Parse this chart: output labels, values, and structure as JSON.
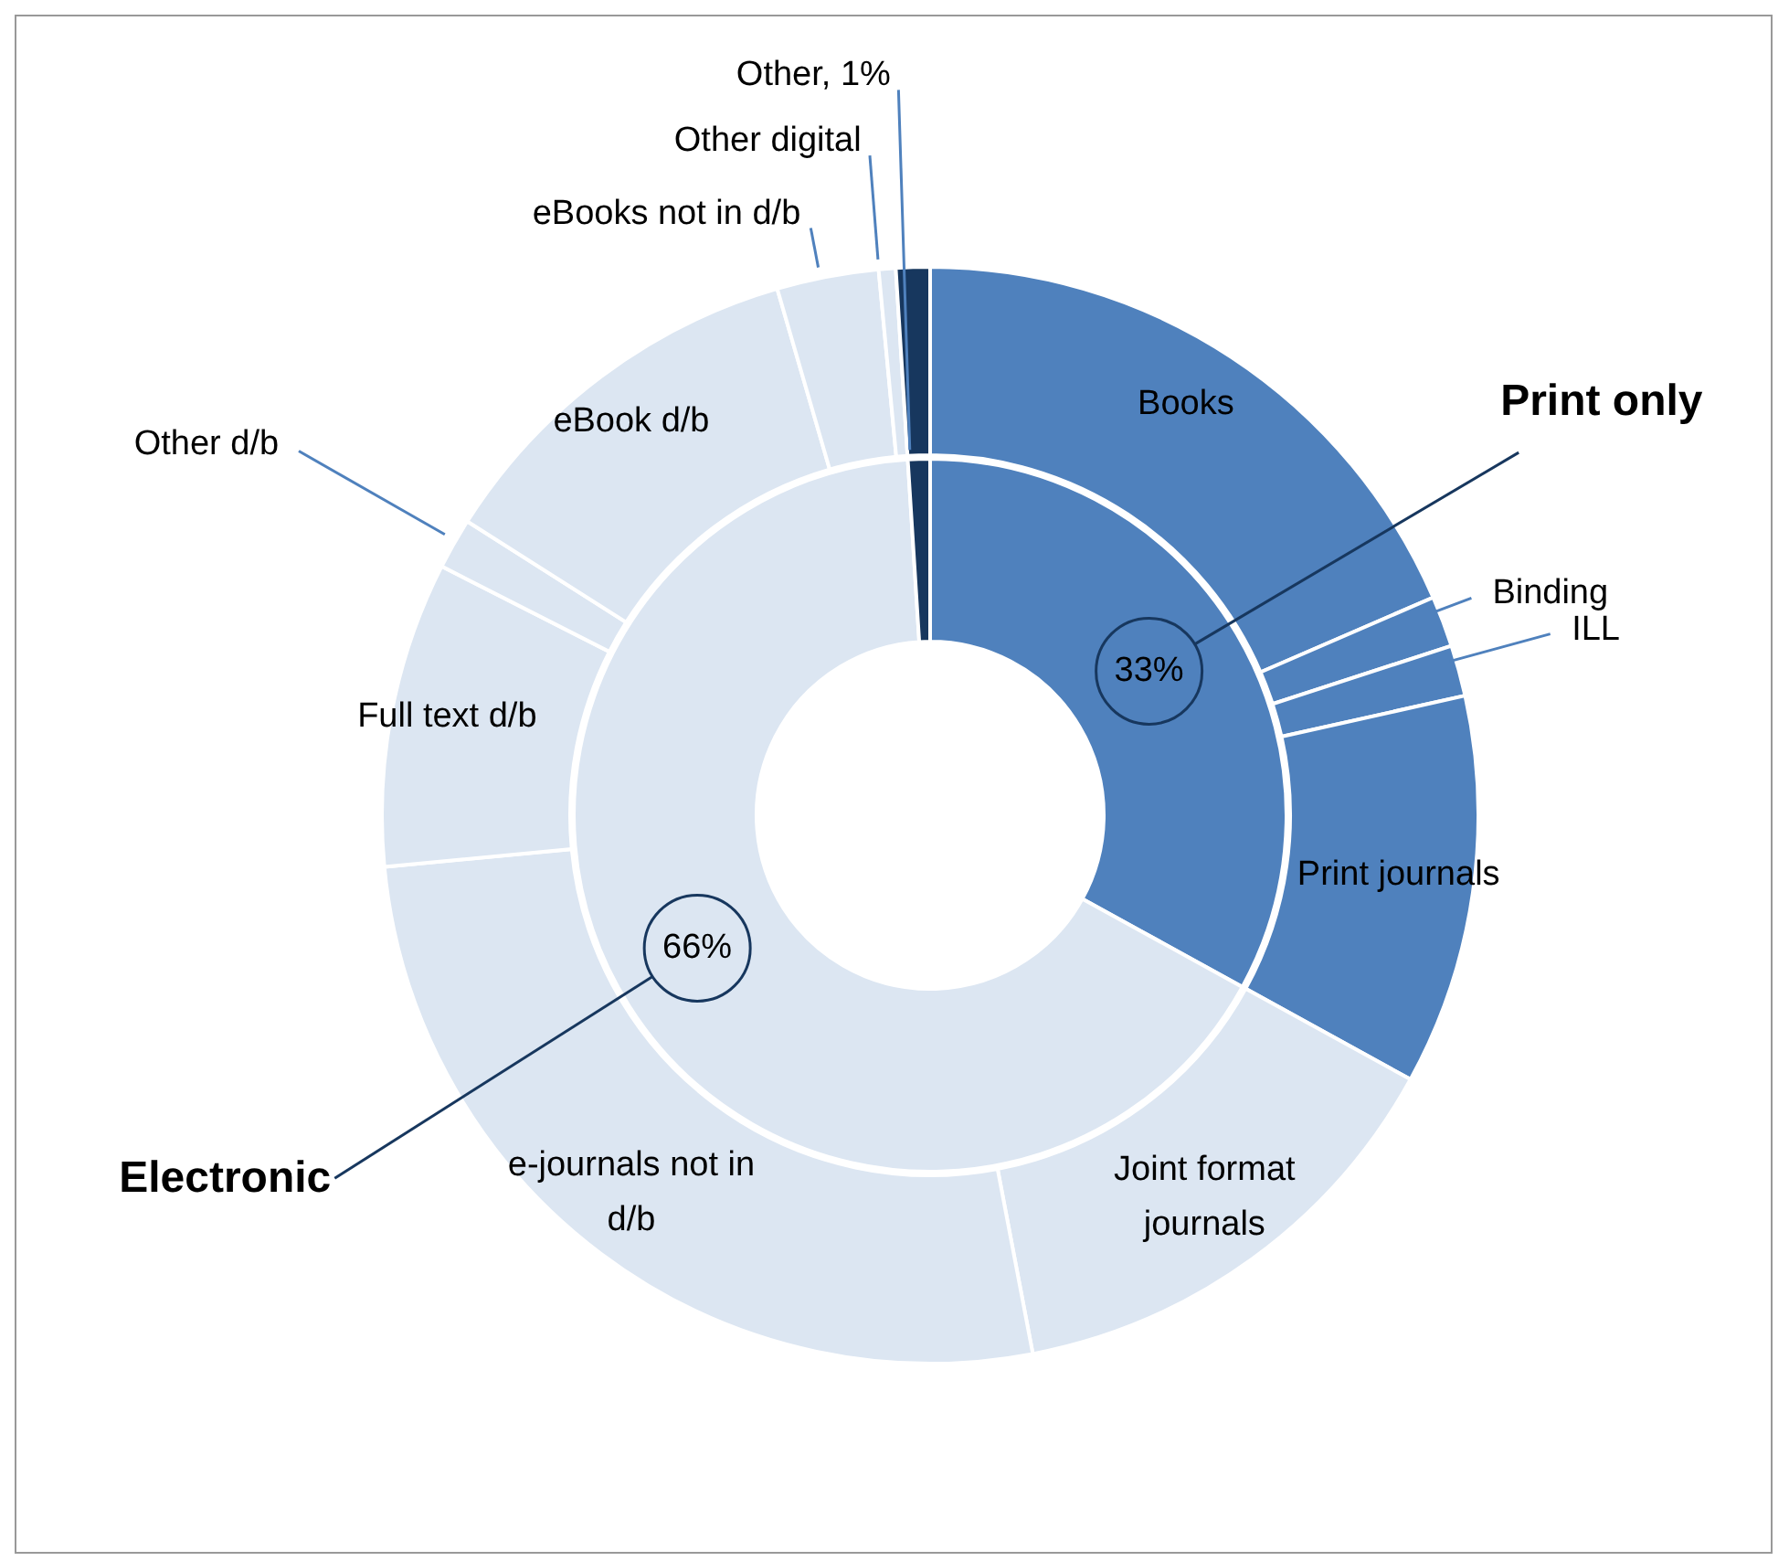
{
  "chart_data": [
    {
      "type": "donut",
      "categories": [
        "Print only",
        "Electronic",
        "Other, 1%"
      ],
      "values": [
        33,
        66,
        1
      ],
      "value_labels": [
        "33%",
        "66%",
        null
      ],
      "colors": [
        "#4f81bd",
        "#dce6f2",
        "#17375e"
      ]
    },
    {
      "type": "donut",
      "categories": [
        "Books",
        "Binding",
        "ILL",
        "Print journals",
        "Joint format journals",
        "e-journals not in d/b",
        "Full text d/b",
        "Other d/b",
        "eBook d/b",
        "eBooks not in d/b",
        "Other digital",
        null
      ],
      "values": [
        18.5,
        1.5,
        1.5,
        11.5,
        14,
        26.5,
        9,
        1.5,
        11.5,
        3,
        0.5,
        1
      ],
      "colors": [
        "#4f81bd",
        "#4f81bd",
        "#4f81bd",
        "#4f81bd",
        "#dce6f2",
        "#dce6f2",
        "#dce6f2",
        "#dce6f2",
        "#dce6f2",
        "#dce6f2",
        "#dce6f2",
        "#17375e"
      ]
    }
  ]
}
